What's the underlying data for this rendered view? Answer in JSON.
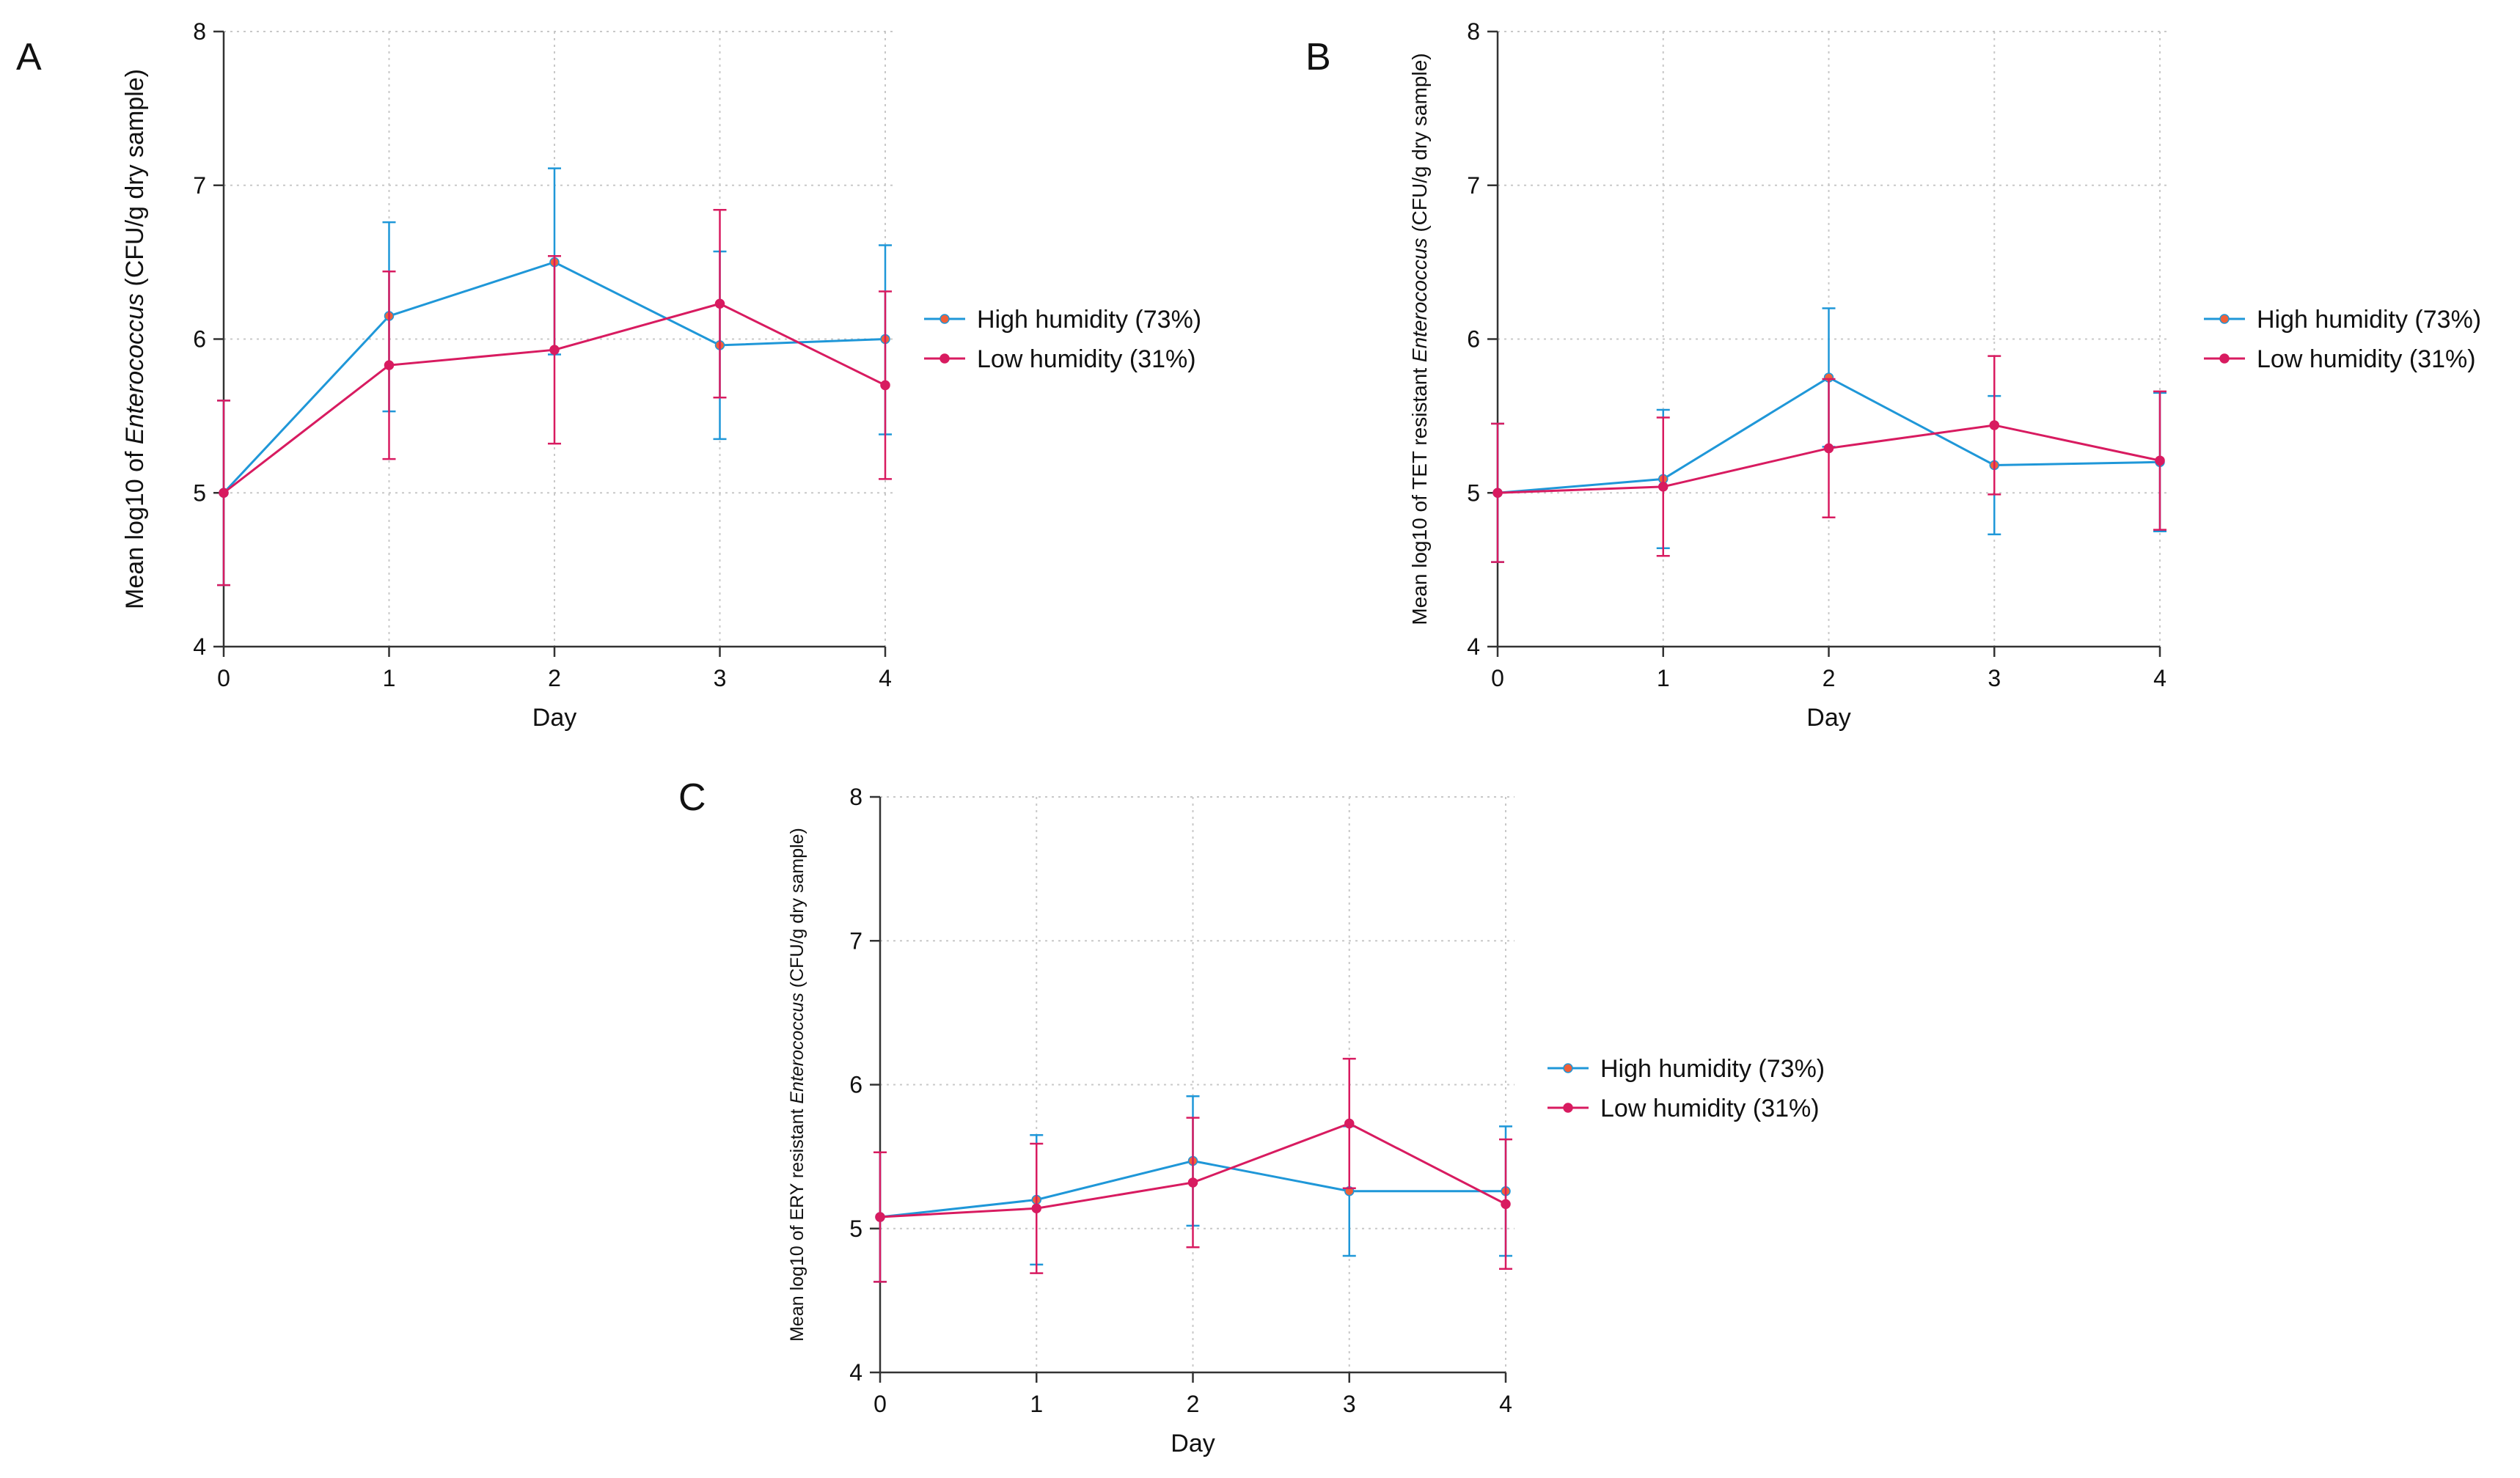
{
  "colors": {
    "high": "#1f97d8",
    "low": "#d81b60",
    "marker": "#f0603a",
    "grid": "#c8c8c8",
    "axis": "#333333"
  },
  "chart_data": [
    {
      "panel": "A",
      "type": "line",
      "x": [
        0,
        1,
        2,
        3,
        4
      ],
      "xlabel": "Day",
      "ylabel_parts": [
        "Mean log10 of ",
        "Enterococcus",
        " (CFU/g dry sample)"
      ],
      "ylim": [
        4,
        8
      ],
      "yticks": [
        4,
        5,
        6,
        7,
        8
      ],
      "legend_position": "right",
      "series": [
        {
          "name": "High humidity (73%)",
          "key": "high",
          "values": [
            5.0,
            6.15,
            6.5,
            5.96,
            6.0
          ],
          "err_low": [
            4.4,
            5.53,
            5.9,
            5.35,
            5.38
          ],
          "err_high": [
            5.6,
            6.76,
            7.11,
            6.57,
            6.61
          ]
        },
        {
          "name": "Low humidity (31%)",
          "key": "low",
          "values": [
            5.0,
            5.83,
            5.93,
            6.23,
            5.7
          ],
          "err_low": [
            4.4,
            5.22,
            5.32,
            5.62,
            5.09
          ],
          "err_high": [
            5.6,
            6.44,
            6.54,
            6.84,
            6.31
          ]
        }
      ]
    },
    {
      "panel": "B",
      "type": "line",
      "x": [
        0,
        1,
        2,
        3,
        4
      ],
      "xlabel": "Day",
      "ylabel_parts": [
        "Mean log10 of TET resistant ",
        "Enterococcus",
        " (CFU/g dry sample)"
      ],
      "ylim": [
        4,
        8
      ],
      "yticks": [
        4,
        5,
        6,
        7,
        8
      ],
      "legend_position": "right",
      "series": [
        {
          "name": "High humidity (73%)",
          "key": "high",
          "values": [
            5.0,
            5.09,
            5.75,
            5.18,
            5.2
          ],
          "err_low": [
            4.55,
            4.64,
            5.3,
            4.73,
            4.75
          ],
          "err_high": [
            5.45,
            5.54,
            6.2,
            5.63,
            5.65
          ]
        },
        {
          "name": "Low humidity (31%)",
          "key": "low",
          "values": [
            5.0,
            5.04,
            5.29,
            5.44,
            5.21
          ],
          "err_low": [
            4.55,
            4.59,
            4.84,
            4.99,
            4.76
          ],
          "err_high": [
            5.45,
            5.49,
            5.74,
            5.89,
            5.66
          ]
        }
      ]
    },
    {
      "panel": "C",
      "type": "line",
      "x": [
        0,
        1,
        2,
        3,
        4
      ],
      "xlabel": "Day",
      "ylabel_parts": [
        "Mean log10 of ERY resistant ",
        "Enterococcus",
        " (CFU/g dry sample)"
      ],
      "ylim": [
        4,
        8
      ],
      "yticks": [
        4,
        5,
        6,
        7,
        8
      ],
      "legend_position": "right",
      "series": [
        {
          "name": "High humidity (73%)",
          "key": "high",
          "values": [
            5.08,
            5.2,
            5.47,
            5.26,
            5.26
          ],
          "err_low": [
            4.63,
            4.75,
            5.02,
            4.81,
            4.81
          ],
          "err_high": [
            5.53,
            5.65,
            5.92,
            5.71,
            5.71
          ]
        },
        {
          "name": "Low humidity (31%)",
          "key": "low",
          "values": [
            5.08,
            5.14,
            5.32,
            5.73,
            5.17
          ],
          "err_low": [
            4.63,
            4.69,
            4.87,
            5.28,
            4.72
          ],
          "err_high": [
            5.53,
            5.59,
            5.77,
            6.18,
            5.62
          ]
        }
      ]
    }
  ]
}
